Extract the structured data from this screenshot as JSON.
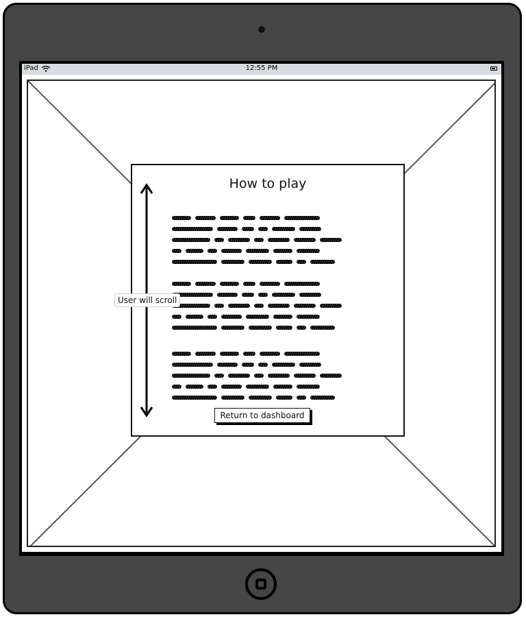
{
  "status_bar": {
    "device_label": "iPad",
    "time": "12:55 PM",
    "wifi_icon": "wifi-icon",
    "battery_icon": "battery-icon"
  },
  "dialog": {
    "title": "How to play",
    "body_placeholder": "scribbled-text",
    "paragraph_count": 3,
    "return_button_label": "Return to dashboard"
  },
  "annotation": {
    "scroll_label": "User will scroll",
    "scroll_icon": "double-arrow-icon"
  },
  "device": {
    "home_icon": "home-button-icon",
    "camera_icon": "camera-icon"
  },
  "colors": {
    "device_body": "#464646",
    "status_bar": "#d6dde0",
    "ink": "#111111"
  }
}
